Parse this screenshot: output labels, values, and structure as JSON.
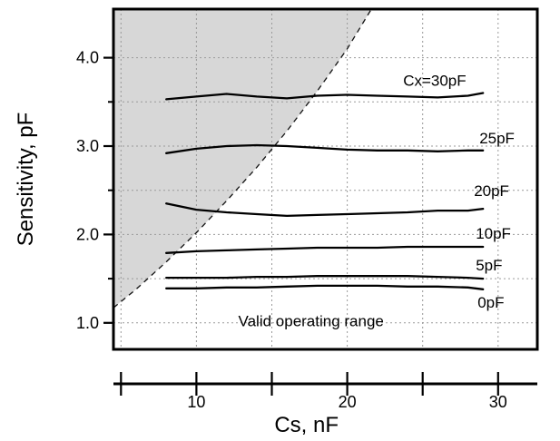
{
  "chart_data": {
    "type": "line",
    "title": "",
    "xlabel": "Cs, nF",
    "ylabel": "Sensitivity, pF",
    "xlim": [
      4.5,
      32.6
    ],
    "ylim": [
      0.7,
      4.55
    ],
    "x_ticks": [
      10,
      20,
      30
    ],
    "y_ticks": [
      1.0,
      2.0,
      3.0,
      4.0
    ],
    "x_tick_labels": [
      "10",
      "20",
      "30"
    ],
    "y_tick_labels": [
      "1.0",
      "2.0",
      "3.0",
      "4.0"
    ],
    "grid": true,
    "legend": "inline labels at right end of each curve",
    "annotation": "Valid operating range",
    "shaded_region": {
      "description_visible": false,
      "boundary_x": [
        4.5,
        6,
        8,
        10,
        12,
        14,
        16,
        18,
        20,
        21.6
      ],
      "boundary_y": [
        1.17,
        1.38,
        1.69,
        2.02,
        2.38,
        2.76,
        3.17,
        3.62,
        4.1,
        4.55
      ]
    },
    "series": [
      {
        "name": "Cx=30pF",
        "x": [
          8,
          10,
          12,
          14,
          16,
          18,
          20,
          22,
          24,
          26,
          28,
          29
        ],
        "y": [
          3.53,
          3.56,
          3.59,
          3.56,
          3.54,
          3.57,
          3.58,
          3.57,
          3.56,
          3.55,
          3.57,
          3.6
        ]
      },
      {
        "name": "25pF",
        "x": [
          8,
          10,
          12,
          14,
          16,
          18,
          20,
          22,
          24,
          26,
          28,
          29
        ],
        "y": [
          2.92,
          2.97,
          3.0,
          3.01,
          3.0,
          2.98,
          2.96,
          2.95,
          2.95,
          2.94,
          2.95,
          2.95
        ]
      },
      {
        "name": "20pF",
        "x": [
          8,
          10,
          12,
          14,
          16,
          18,
          20,
          22,
          24,
          26,
          28,
          29
        ],
        "y": [
          2.35,
          2.28,
          2.25,
          2.23,
          2.21,
          2.22,
          2.23,
          2.24,
          2.25,
          2.27,
          2.27,
          2.29
        ]
      },
      {
        "name": "10pF",
        "x": [
          8,
          10,
          12,
          14,
          16,
          18,
          20,
          22,
          24,
          26,
          28,
          29
        ],
        "y": [
          1.79,
          1.81,
          1.82,
          1.83,
          1.84,
          1.85,
          1.85,
          1.85,
          1.86,
          1.86,
          1.86,
          1.86
        ]
      },
      {
        "name": "5pF",
        "x": [
          8,
          10,
          12,
          14,
          16,
          18,
          20,
          22,
          24,
          26,
          28,
          29
        ],
        "y": [
          1.51,
          1.51,
          1.51,
          1.52,
          1.52,
          1.53,
          1.53,
          1.53,
          1.53,
          1.52,
          1.51,
          1.5
        ]
      },
      {
        "name": "0pF",
        "x": [
          8,
          10,
          12,
          14,
          16,
          18,
          20,
          22,
          24,
          26,
          28,
          29
        ],
        "y": [
          1.39,
          1.39,
          1.4,
          1.4,
          1.41,
          1.42,
          1.42,
          1.42,
          1.41,
          1.41,
          1.4,
          1.38
        ]
      }
    ]
  }
}
